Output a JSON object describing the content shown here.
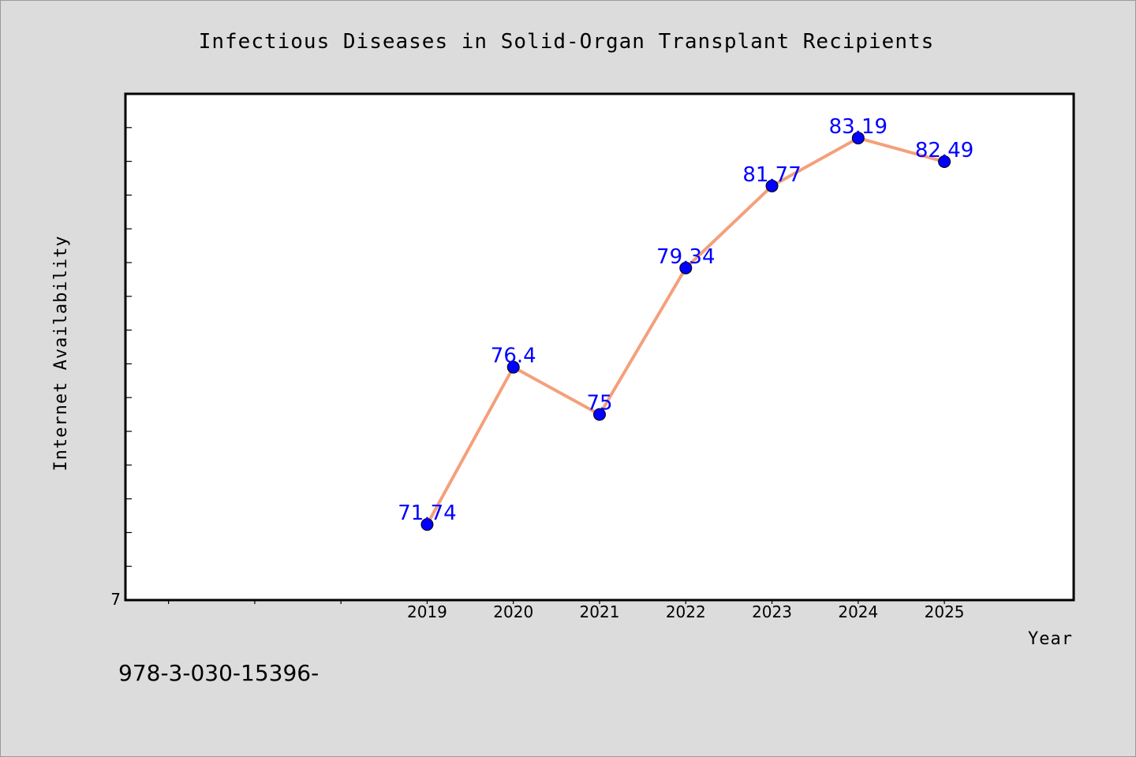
{
  "chart_data": {
    "type": "line",
    "title": "Infectious Diseases in Solid-Organ Transplant Recipients",
    "xlabel": "Year",
    "ylabel": "Internet Availability",
    "x": [
      2019,
      2020,
      2021,
      2022,
      2023,
      2024,
      2025
    ],
    "x_tick_labels": [
      "2019",
      "2020",
      "2021",
      "2022",
      "2023",
      "2024",
      "2025"
    ],
    "xlim": [
      2015.5,
      2026.5
    ],
    "y_tick_label": "7",
    "ylim": [
      69.5,
      84.5
    ],
    "series": [
      {
        "values": [
          71.74,
          76.4,
          75,
          79.34,
          81.77,
          83.19,
          82.49
        ],
        "labels": [
          "71.74",
          "76.4",
          "75",
          "79.34",
          "81.77",
          "83.19",
          "82.49"
        ]
      }
    ],
    "grid": false,
    "legend": "none",
    "colors": {
      "line": "#f4a07c",
      "marker": "#0000ff",
      "data_label": "#0000ff",
      "plot_background": "#ffffff",
      "page_background": "#dcdcdc"
    }
  },
  "footer": {
    "text": "978-3-030-15396-"
  }
}
